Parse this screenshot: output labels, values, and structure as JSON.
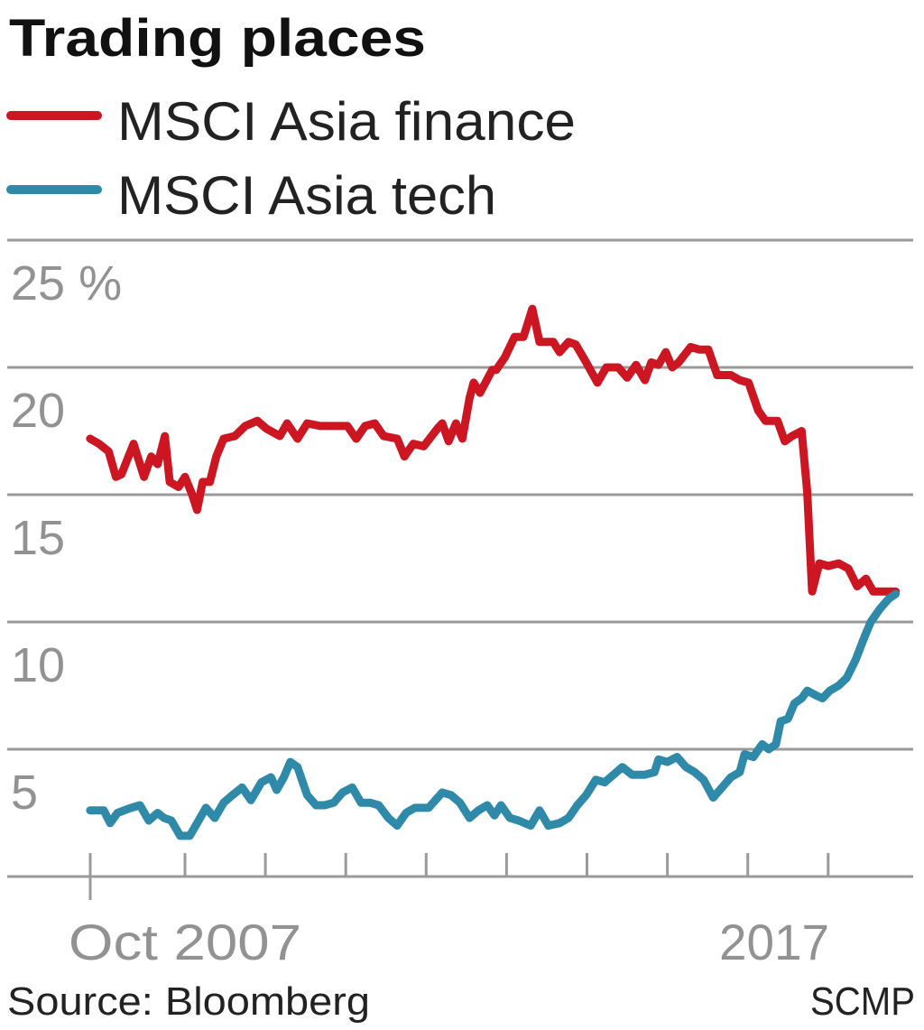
{
  "chart_data": {
    "type": "line",
    "title": "Trading places",
    "ylabel": "",
    "xlabel": "",
    "y_unit": "%",
    "ylim": [
      0,
      25
    ],
    "xlim": [
      2007.75,
      2017.85
    ],
    "y_ticks": [
      {
        "value": 25,
        "label": "25 %"
      },
      {
        "value": 20,
        "label": "20"
      },
      {
        "value": 15,
        "label": "15"
      },
      {
        "value": 10,
        "label": "10"
      },
      {
        "value": 5,
        "label": "5"
      }
    ],
    "x_tick_marks": [
      2007.75,
      2009,
      2010,
      2011,
      2012,
      2013,
      2014,
      2015,
      2016,
      2017
    ],
    "x_labels": [
      {
        "value": 2007.75,
        "label": "Oct 2007"
      },
      {
        "value": 2017,
        "label": "2017"
      }
    ],
    "grid": true,
    "legend_position": "top-left",
    "source": "Source: Bloomberg",
    "credit": "SCMP",
    "series": [
      {
        "name": "MSCI Asia finance",
        "color": "#cc1622",
        "points": [
          [
            2007.82,
            17.2
          ],
          [
            2007.93,
            17.0
          ],
          [
            2008.05,
            16.7
          ],
          [
            2008.14,
            15.7
          ],
          [
            2008.21,
            15.8
          ],
          [
            2008.36,
            17.0
          ],
          [
            2008.49,
            15.7
          ],
          [
            2008.58,
            16.5
          ],
          [
            2008.66,
            16.2
          ],
          [
            2008.75,
            17.3
          ],
          [
            2008.81,
            15.5
          ],
          [
            2008.92,
            15.3
          ],
          [
            2009.0,
            15.7
          ],
          [
            2009.09,
            15.0
          ],
          [
            2009.15,
            14.4
          ],
          [
            2009.22,
            15.5
          ],
          [
            2009.31,
            15.5
          ],
          [
            2009.39,
            16.5
          ],
          [
            2009.48,
            17.2
          ],
          [
            2009.62,
            17.3
          ],
          [
            2009.75,
            17.7
          ],
          [
            2009.9,
            17.9
          ],
          [
            2010.01,
            17.6
          ],
          [
            2010.18,
            17.3
          ],
          [
            2010.27,
            17.8
          ],
          [
            2010.4,
            17.2
          ],
          [
            2010.52,
            17.8
          ],
          [
            2010.68,
            17.7
          ],
          [
            2010.85,
            17.7
          ],
          [
            2011.02,
            17.7
          ],
          [
            2011.13,
            17.2
          ],
          [
            2011.24,
            17.7
          ],
          [
            2011.36,
            17.8
          ],
          [
            2011.47,
            17.3
          ],
          [
            2011.64,
            17.2
          ],
          [
            2011.73,
            16.5
          ],
          [
            2011.84,
            17.0
          ],
          [
            2011.97,
            16.9
          ],
          [
            2012.14,
            17.6
          ],
          [
            2012.2,
            17.8
          ],
          [
            2012.28,
            17.1
          ],
          [
            2012.37,
            17.8
          ],
          [
            2012.45,
            17.2
          ],
          [
            2012.54,
            18.8
          ],
          [
            2012.59,
            19.4
          ],
          [
            2012.67,
            19.0
          ],
          [
            2012.82,
            19.9
          ],
          [
            2012.87,
            19.9
          ],
          [
            2012.98,
            20.4
          ],
          [
            2013.1,
            21.2
          ],
          [
            2013.21,
            21.2
          ],
          [
            2013.32,
            22.3
          ],
          [
            2013.41,
            21.0
          ],
          [
            2013.58,
            21.0
          ],
          [
            2013.66,
            20.6
          ],
          [
            2013.77,
            21.0
          ],
          [
            2013.86,
            20.9
          ],
          [
            2013.99,
            20.2
          ],
          [
            2014.13,
            19.4
          ],
          [
            2014.24,
            20.0
          ],
          [
            2014.39,
            20.0
          ],
          [
            2014.5,
            19.6
          ],
          [
            2014.61,
            20.1
          ],
          [
            2014.72,
            19.5
          ],
          [
            2014.8,
            20.2
          ],
          [
            2014.89,
            20.1
          ],
          [
            2014.98,
            20.6
          ],
          [
            2015.06,
            20.0
          ],
          [
            2015.14,
            20.2
          ],
          [
            2015.29,
            20.8
          ],
          [
            2015.4,
            20.7
          ],
          [
            2015.51,
            20.7
          ],
          [
            2015.62,
            19.7
          ],
          [
            2015.79,
            19.7
          ],
          [
            2015.9,
            19.5
          ],
          [
            2016.01,
            19.4
          ],
          [
            2016.13,
            18.3
          ],
          [
            2016.22,
            17.9
          ],
          [
            2016.3,
            17.9
          ],
          [
            2016.37,
            17.9
          ],
          [
            2016.46,
            17.1
          ],
          [
            2016.55,
            17.3
          ],
          [
            2016.67,
            17.5
          ],
          [
            2016.74,
            15.1
          ],
          [
            2016.8,
            11.2
          ],
          [
            2016.89,
            12.3
          ],
          [
            2017.0,
            12.2
          ],
          [
            2017.13,
            12.3
          ],
          [
            2017.25,
            12.1
          ],
          [
            2017.36,
            11.4
          ],
          [
            2017.47,
            11.7
          ],
          [
            2017.56,
            11.2
          ],
          [
            2017.7,
            11.2
          ],
          [
            2017.84,
            11.2
          ]
        ]
      },
      {
        "name": "MSCI Asia tech",
        "color": "#2e8aa8",
        "points": [
          [
            2007.82,
            2.6
          ],
          [
            2007.99,
            2.6
          ],
          [
            2008.07,
            2.1
          ],
          [
            2008.16,
            2.5
          ],
          [
            2008.33,
            2.7
          ],
          [
            2008.44,
            2.8
          ],
          [
            2008.55,
            2.2
          ],
          [
            2008.66,
            2.5
          ],
          [
            2008.74,
            2.3
          ],
          [
            2008.83,
            2.2
          ],
          [
            2008.94,
            1.6
          ],
          [
            2009.06,
            1.6
          ],
          [
            2009.17,
            2.2
          ],
          [
            2009.26,
            2.7
          ],
          [
            2009.37,
            2.3
          ],
          [
            2009.48,
            2.9
          ],
          [
            2009.59,
            3.2
          ],
          [
            2009.71,
            3.5
          ],
          [
            2009.82,
            3.0
          ],
          [
            2009.95,
            3.7
          ],
          [
            2010.07,
            3.9
          ],
          [
            2010.14,
            3.4
          ],
          [
            2010.23,
            3.9
          ],
          [
            2010.31,
            4.5
          ],
          [
            2010.4,
            4.3
          ],
          [
            2010.52,
            3.2
          ],
          [
            2010.63,
            2.8
          ],
          [
            2010.74,
            2.8
          ],
          [
            2010.85,
            2.9
          ],
          [
            2010.96,
            3.3
          ],
          [
            2011.08,
            3.5
          ],
          [
            2011.19,
            2.9
          ],
          [
            2011.3,
            2.9
          ],
          [
            2011.41,
            2.8
          ],
          [
            2011.53,
            2.3
          ],
          [
            2011.64,
            2.0
          ],
          [
            2011.75,
            2.5
          ],
          [
            2011.86,
            2.7
          ],
          [
            2012.03,
            2.7
          ],
          [
            2012.2,
            3.3
          ],
          [
            2012.31,
            3.2
          ],
          [
            2012.42,
            2.9
          ],
          [
            2012.54,
            2.3
          ],
          [
            2012.65,
            2.6
          ],
          [
            2012.76,
            2.8
          ],
          [
            2012.85,
            2.4
          ],
          [
            2012.93,
            2.8
          ],
          [
            2013.04,
            2.3
          ],
          [
            2013.15,
            2.2
          ],
          [
            2013.3,
            2.0
          ],
          [
            2013.41,
            2.6
          ],
          [
            2013.52,
            2.0
          ],
          [
            2013.66,
            2.1
          ],
          [
            2013.77,
            2.3
          ],
          [
            2013.88,
            2.8
          ],
          [
            2013.99,
            3.2
          ],
          [
            2014.11,
            3.8
          ],
          [
            2014.22,
            3.7
          ],
          [
            2014.33,
            4.0
          ],
          [
            2014.44,
            4.3
          ],
          [
            2014.56,
            4.0
          ],
          [
            2014.72,
            4.0
          ],
          [
            2014.84,
            4.1
          ],
          [
            2014.89,
            4.6
          ],
          [
            2015.0,
            4.5
          ],
          [
            2015.12,
            4.7
          ],
          [
            2015.23,
            4.3
          ],
          [
            2015.34,
            4.1
          ],
          [
            2015.45,
            3.8
          ],
          [
            2015.57,
            3.1
          ],
          [
            2015.68,
            3.5
          ],
          [
            2015.79,
            3.9
          ],
          [
            2015.9,
            4.1
          ],
          [
            2015.96,
            4.8
          ],
          [
            2016.07,
            4.7
          ],
          [
            2016.18,
            5.2
          ],
          [
            2016.26,
            5.0
          ],
          [
            2016.35,
            5.2
          ],
          [
            2016.41,
            6.1
          ],
          [
            2016.5,
            6.2
          ],
          [
            2016.58,
            6.8
          ],
          [
            2016.67,
            7.0
          ],
          [
            2016.74,
            7.3
          ],
          [
            2016.86,
            7.1
          ],
          [
            2016.93,
            7.0
          ],
          [
            2017.02,
            7.3
          ],
          [
            2017.13,
            7.5
          ],
          [
            2017.23,
            7.8
          ],
          [
            2017.34,
            8.5
          ],
          [
            2017.45,
            9.4
          ],
          [
            2017.53,
            10.0
          ],
          [
            2017.64,
            10.5
          ],
          [
            2017.75,
            10.9
          ],
          [
            2017.84,
            11.1
          ]
        ]
      }
    ]
  }
}
